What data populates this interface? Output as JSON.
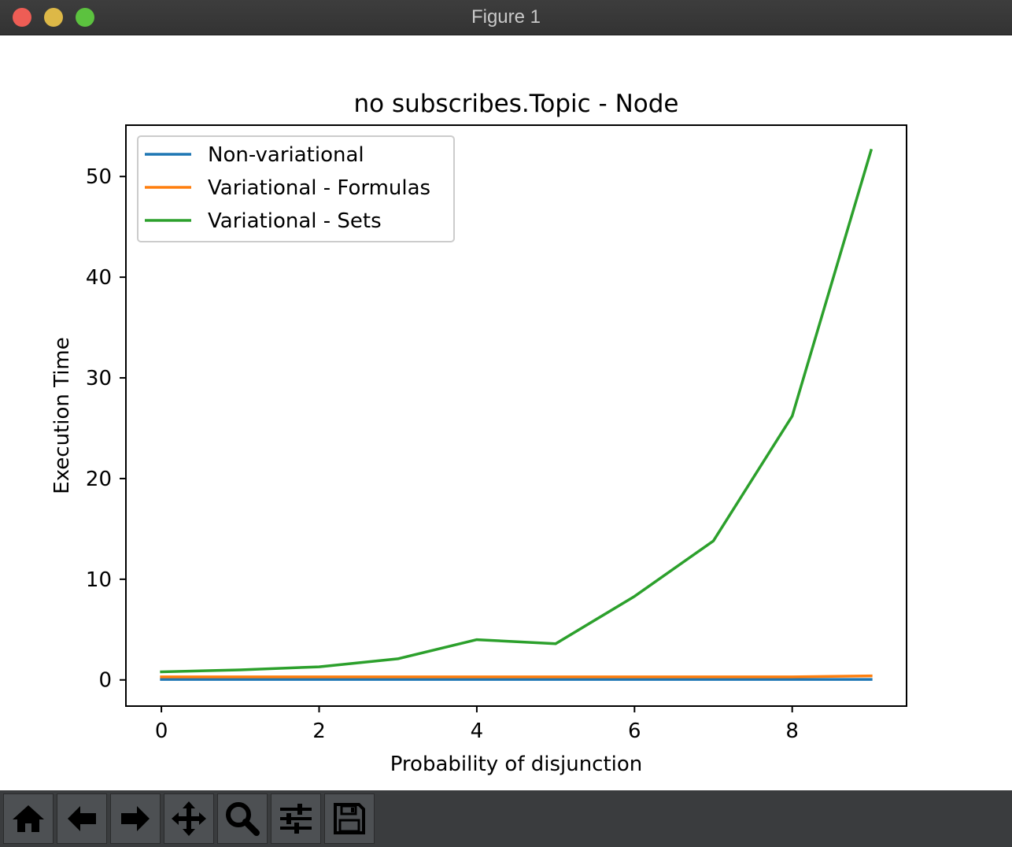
{
  "window": {
    "title": "Figure 1"
  },
  "toolbar": {
    "buttons": [
      {
        "name": "home",
        "icon": "home-icon"
      },
      {
        "name": "back",
        "icon": "arrow-left-icon"
      },
      {
        "name": "forward",
        "icon": "arrow-right-icon"
      },
      {
        "name": "pan",
        "icon": "move-icon"
      },
      {
        "name": "zoom",
        "icon": "magnifier-icon"
      },
      {
        "name": "configure-subplots",
        "icon": "sliders-icon"
      },
      {
        "name": "save",
        "icon": "floppy-disk-icon"
      }
    ]
  },
  "chart_data": {
    "type": "line",
    "title": "no subscribes.Topic - Node",
    "xlabel": "Probability of disjunction",
    "ylabel": "Execution Time",
    "xlim": [
      -0.45,
      9.45
    ],
    "ylim": [
      -2.6,
      55.1
    ],
    "xticks": [
      0,
      2,
      4,
      6,
      8
    ],
    "yticks": [
      0,
      10,
      20,
      30,
      40,
      50
    ],
    "grid": false,
    "legend_position": "upper-left",
    "x": [
      0,
      1,
      2,
      3,
      4,
      5,
      6,
      7,
      8,
      9
    ],
    "series": [
      {
        "name": "Non-variational",
        "color": "#1f77b4",
        "values": [
          0.05,
          0.05,
          0.05,
          0.05,
          0.05,
          0.05,
          0.05,
          0.05,
          0.05,
          0.05
        ]
      },
      {
        "name": "Variational - Formulas",
        "color": "#ff7f0e",
        "values": [
          0.3,
          0.3,
          0.3,
          0.3,
          0.3,
          0.3,
          0.3,
          0.3,
          0.3,
          0.4
        ]
      },
      {
        "name": "Variational - Sets",
        "color": "#2ca02c",
        "values": [
          0.8,
          1.0,
          1.3,
          2.1,
          4.0,
          3.6,
          8.3,
          13.8,
          26.2,
          52.6
        ]
      }
    ]
  }
}
